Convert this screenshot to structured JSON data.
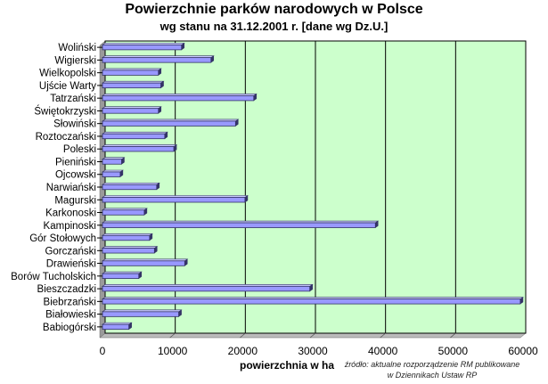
{
  "chart_data": {
    "type": "bar",
    "orientation": "horizontal",
    "title": "Powierzchnie parków narodowych w Polsce",
    "subtitle": "wg stanu na 31.12.2001 r. [dane wg Dz.U.]",
    "xlabel": "powierzchnia w ha",
    "xlim": [
      0,
      60000
    ],
    "xticks": [
      0,
      10000,
      20000,
      30000,
      40000,
      50000,
      60000
    ],
    "grid": true,
    "categories": [
      "Woliński",
      "Wigierski",
      "Wielkopolski",
      "Ujście Warty",
      "Tatrzański",
      "Świętokrzyski",
      "Słowiński",
      "Roztoczański",
      "Poleski",
      "Pieniński",
      "Ojcowski",
      "Narwiański",
      "Magurski",
      "Karkonoski",
      "Kampinoski",
      "Gór Stołowych",
      "Gorczański",
      "Drawieński",
      "Borów Tucholskich",
      "Bieszczadzki",
      "Biebrzański",
      "Białowieski",
      "Babiogórski"
    ],
    "values": [
      10900,
      15100,
      7600,
      7950,
      21200,
      7600,
      18600,
      8500,
      9800,
      2350,
      2150,
      7350,
      19950,
      5580,
      38550,
      6340,
      7030,
      11350,
      4800,
      29200,
      59230,
      10500,
      3390
    ]
  },
  "colors": {
    "plot_bg": "#ccffcc",
    "bar_fill": "#9999ff",
    "bar_shadow": "#333366",
    "gridline": "#000000"
  },
  "note": {
    "line1": "źródło: aktualne rozporządzenie RM publikowane",
    "line2": "w Dziennikach Ustaw RP"
  }
}
